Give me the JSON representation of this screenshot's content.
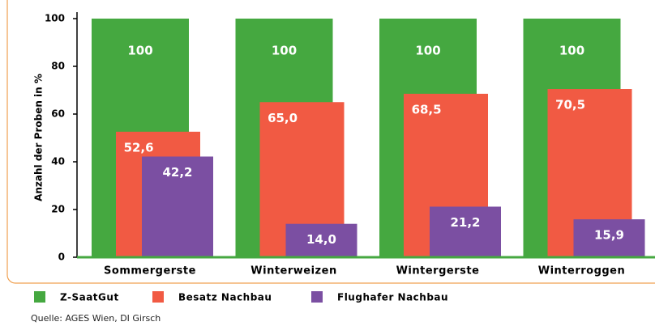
{
  "chart_data": {
    "type": "bar",
    "y_label": "Anzahl der Proben in %",
    "categories": [
      "Sommergerste",
      "Winterweizen",
      "Wintergerste",
      "Winterroggen"
    ],
    "series": [
      {
        "name": "Z-SaatGut",
        "color": "#45a840",
        "values": [
          100,
          100,
          100,
          100
        ]
      },
      {
        "name": "Besatz Nachbau",
        "color": "#f15a43",
        "values": [
          52.6,
          65.0,
          68.5,
          70.5
        ],
        "value_labels": [
          "52,6",
          "65,0",
          "68,5",
          "70,5"
        ]
      },
      {
        "name": "Flughafer Nachbau",
        "color": "#7b4fa2",
        "values": [
          42.2,
          14.0,
          21.2,
          15.9
        ],
        "value_labels": [
          "42,2",
          "14,0",
          "21,2",
          "15,9"
        ]
      }
    ],
    "ylim": [
      0,
      100
    ],
    "yticks": [
      0,
      20,
      40,
      60,
      80,
      100
    ],
    "source": "Quelle: AGES Wien, DI Girsch"
  }
}
